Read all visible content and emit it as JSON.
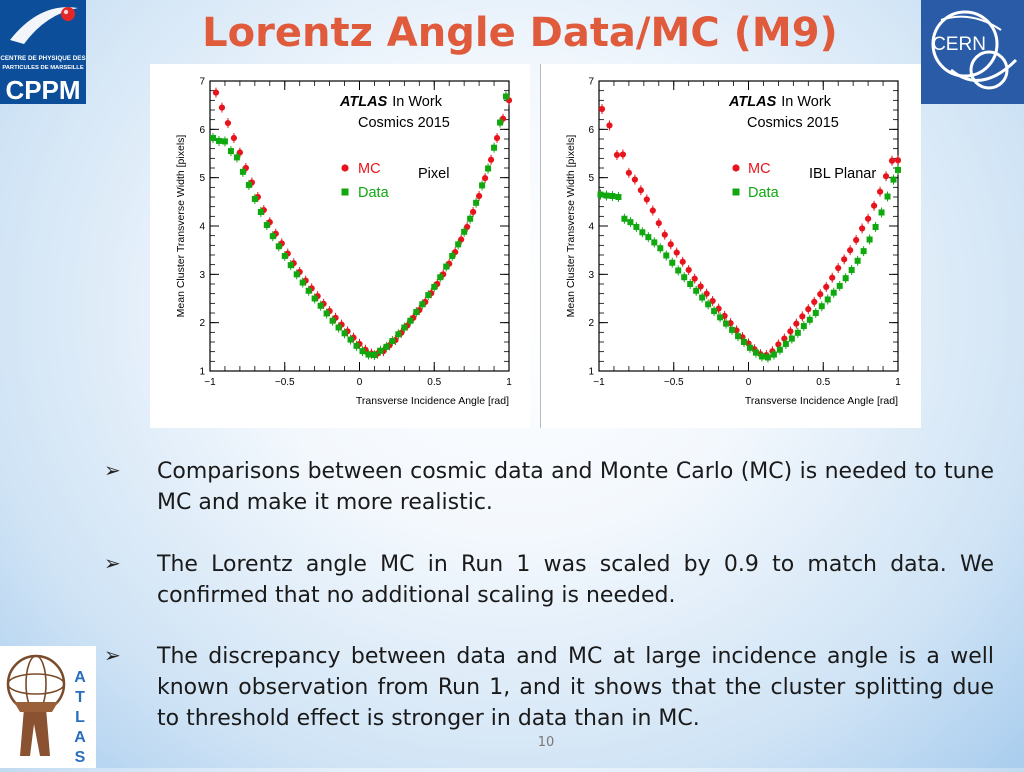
{
  "slide": {
    "title": "Lorentz Angle Data/MC (M9)",
    "page_number": "10",
    "logos": {
      "cppm": {
        "line1": "CENTRE DE PHYSIQUE DES",
        "line2": "PARTICULES DE MARSEILLE",
        "name": "CPPM"
      },
      "cern": {
        "name": "CERN"
      },
      "atlas": {
        "letters": [
          "A",
          "T",
          "L",
          "A",
          "S"
        ]
      }
    }
  },
  "bullets": [
    {
      "icon": "arrow-bullet-icon",
      "text": "Comparisons between cosmic data and Monte Carlo (MC) is needed to tune MC and make it more realistic."
    },
    {
      "icon": "arrow-bullet-icon",
      "text": "The Lorentz angle MC in Run 1 was scaled by 0.9 to match data. We confirmed that no additional scaling is needed."
    },
    {
      "icon": "arrow-bullet-icon",
      "text": "The discrepancy between data and MC at large incidence angle is a well known observation from Run 1, and it shows that the cluster splitting due to threshold effect is stronger in data than in MC."
    }
  ],
  "chart_data": [
    {
      "type": "scatter",
      "atlas_label": "ATLAS",
      "atlas_suffix": "In Work",
      "subtitle": "Cosmics 2015",
      "detector_label": "Pixel",
      "xlabel": "Transverse Incidence Angle [rad]",
      "ylabel": "Mean Cluster Transverse Width [pixels]",
      "xlim": [
        -1,
        1
      ],
      "ylim": [
        1,
        7
      ],
      "xticks": [
        "−1",
        "−0.5",
        "0",
        "0.5",
        "1"
      ],
      "yticks": [
        "1",
        "2",
        "3",
        "4",
        "5",
        "6",
        "7"
      ],
      "legend": "upper-center",
      "colors": {
        "MC": "#e8141d",
        "Data": "#0fa80f"
      },
      "series": [
        {
          "name": "MC",
          "marker": "circle",
          "x": [
            -0.96,
            -0.92,
            -0.88,
            -0.84,
            -0.8,
            -0.76,
            -0.72,
            -0.68,
            -0.64,
            -0.6,
            -0.56,
            -0.52,
            -0.48,
            -0.44,
            -0.4,
            -0.36,
            -0.32,
            -0.28,
            -0.24,
            -0.2,
            -0.16,
            -0.12,
            -0.08,
            -0.04,
            0.0,
            0.04,
            0.08,
            0.12,
            0.16,
            0.2,
            0.24,
            0.28,
            0.32,
            0.36,
            0.4,
            0.44,
            0.48,
            0.52,
            0.56,
            0.6,
            0.64,
            0.68,
            0.72,
            0.76,
            0.8,
            0.84,
            0.88,
            0.92,
            0.96,
            1.0
          ],
          "y": [
            6.76,
            6.45,
            6.13,
            5.82,
            5.52,
            5.2,
            4.9,
            4.6,
            4.33,
            4.08,
            3.84,
            3.64,
            3.43,
            3.23,
            3.05,
            2.87,
            2.71,
            2.55,
            2.39,
            2.24,
            2.1,
            1.96,
            1.82,
            1.69,
            1.56,
            1.44,
            1.36,
            1.36,
            1.41,
            1.53,
            1.64,
            1.79,
            1.94,
            2.1,
            2.26,
            2.43,
            2.61,
            2.8,
            3.0,
            3.22,
            3.46,
            3.72,
            3.98,
            4.29,
            4.62,
            4.99,
            5.37,
            5.82,
            6.22,
            6.6
          ]
        },
        {
          "name": "Data",
          "marker": "square",
          "x": [
            -0.98,
            -0.94,
            -0.9,
            -0.86,
            -0.82,
            -0.78,
            -0.74,
            -0.7,
            -0.66,
            -0.62,
            -0.58,
            -0.54,
            -0.5,
            -0.46,
            -0.42,
            -0.38,
            -0.34,
            -0.3,
            -0.26,
            -0.22,
            -0.18,
            -0.14,
            -0.1,
            -0.06,
            -0.02,
            0.02,
            0.06,
            0.1,
            0.14,
            0.18,
            0.22,
            0.26,
            0.3,
            0.34,
            0.38,
            0.42,
            0.46,
            0.5,
            0.54,
            0.58,
            0.62,
            0.66,
            0.7,
            0.74,
            0.78,
            0.82,
            0.86,
            0.9,
            0.94,
            0.98
          ],
          "y": [
            5.82,
            5.76,
            5.75,
            5.55,
            5.42,
            5.12,
            4.85,
            4.56,
            4.29,
            4.02,
            3.79,
            3.58,
            3.38,
            3.19,
            3.0,
            2.83,
            2.66,
            2.5,
            2.35,
            2.19,
            2.04,
            1.9,
            1.78,
            1.65,
            1.52,
            1.41,
            1.34,
            1.33,
            1.42,
            1.5,
            1.62,
            1.76,
            1.9,
            2.04,
            2.22,
            2.38,
            2.57,
            2.74,
            2.94,
            3.16,
            3.38,
            3.62,
            3.88,
            4.15,
            4.48,
            4.84,
            5.19,
            5.62,
            6.14,
            6.68
          ]
        }
      ]
    },
    {
      "type": "scatter",
      "atlas_label": "ATLAS",
      "atlas_suffix": "In Work",
      "subtitle": "Cosmics 2015",
      "detector_label": "IBL Planar",
      "xlabel": "Transverse Incidence Angle [rad]",
      "ylabel": "Mean Cluster Transverse Width [pixels]",
      "xlim": [
        -1,
        1
      ],
      "ylim": [
        1,
        7
      ],
      "xticks": [
        "−1",
        "−0.5",
        "0",
        "0.5",
        "1"
      ],
      "yticks": [
        "1",
        "2",
        "3",
        "4",
        "5",
        "6",
        "7"
      ],
      "legend": "upper-center",
      "colors": {
        "MC": "#e8141d",
        "Data": "#0fa80f"
      },
      "series": [
        {
          "name": "MC",
          "marker": "circle",
          "x": [
            -0.98,
            -0.93,
            -0.88,
            -0.84,
            -0.8,
            -0.76,
            -0.72,
            -0.68,
            -0.64,
            -0.6,
            -0.56,
            -0.52,
            -0.48,
            -0.44,
            -0.4,
            -0.36,
            -0.32,
            -0.28,
            -0.24,
            -0.2,
            -0.16,
            -0.12,
            -0.08,
            -0.04,
            0.0,
            0.04,
            0.08,
            0.12,
            0.16,
            0.2,
            0.24,
            0.28,
            0.32,
            0.36,
            0.4,
            0.44,
            0.48,
            0.52,
            0.56,
            0.6,
            0.64,
            0.68,
            0.72,
            0.76,
            0.8,
            0.84,
            0.88,
            0.92,
            0.96,
            1.0
          ],
          "y": [
            6.42,
            6.08,
            5.47,
            5.48,
            5.1,
            4.96,
            4.74,
            4.55,
            4.32,
            4.06,
            3.82,
            3.62,
            3.45,
            3.26,
            3.09,
            2.91,
            2.75,
            2.6,
            2.45,
            2.29,
            2.14,
            1.99,
            1.84,
            1.7,
            1.57,
            1.45,
            1.35,
            1.33,
            1.41,
            1.55,
            1.67,
            1.82,
            1.98,
            2.13,
            2.28,
            2.43,
            2.59,
            2.74,
            2.93,
            3.13,
            3.31,
            3.5,
            3.71,
            3.95,
            4.15,
            4.42,
            4.71,
            5.03,
            5.35,
            5.36
          ]
        },
        {
          "name": "Data",
          "marker": "square",
          "x": [
            -0.99,
            -0.95,
            -0.91,
            -0.87,
            -0.83,
            -0.79,
            -0.75,
            -0.71,
            -0.67,
            -0.63,
            -0.59,
            -0.55,
            -0.51,
            -0.47,
            -0.43,
            -0.39,
            -0.35,
            -0.31,
            -0.27,
            -0.23,
            -0.19,
            -0.15,
            -0.11,
            -0.07,
            -0.03,
            0.01,
            0.05,
            0.09,
            0.13,
            0.17,
            0.21,
            0.25,
            0.29,
            0.33,
            0.37,
            0.41,
            0.45,
            0.49,
            0.53,
            0.57,
            0.61,
            0.65,
            0.69,
            0.73,
            0.77,
            0.81,
            0.85,
            0.89,
            0.93,
            0.97,
            1.0
          ],
          "y": [
            4.65,
            4.63,
            4.62,
            4.6,
            4.15,
            4.08,
            3.98,
            3.87,
            3.77,
            3.66,
            3.54,
            3.39,
            3.24,
            3.08,
            2.94,
            2.8,
            2.66,
            2.52,
            2.38,
            2.24,
            2.11,
            1.98,
            1.85,
            1.72,
            1.6,
            1.48,
            1.38,
            1.3,
            1.28,
            1.34,
            1.44,
            1.56,
            1.67,
            1.79,
            1.93,
            2.06,
            2.2,
            2.34,
            2.48,
            2.62,
            2.76,
            2.92,
            3.09,
            3.28,
            3.48,
            3.72,
            3.98,
            4.28,
            4.61,
            4.96,
            5.16
          ]
        }
      ]
    }
  ]
}
